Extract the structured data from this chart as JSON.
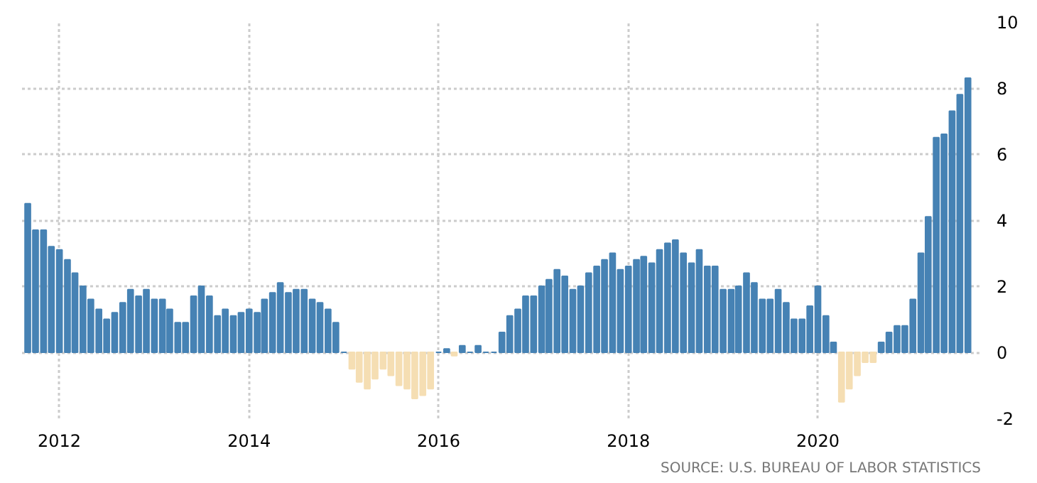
{
  "chart_data": {
    "type": "bar",
    "x": [
      "2011-09",
      "2011-10",
      "2011-11",
      "2011-12",
      "2012-01",
      "2012-02",
      "2012-03",
      "2012-04",
      "2012-05",
      "2012-06",
      "2012-07",
      "2012-08",
      "2012-09",
      "2012-10",
      "2012-11",
      "2012-12",
      "2013-01",
      "2013-02",
      "2013-03",
      "2013-04",
      "2013-05",
      "2013-06",
      "2013-07",
      "2013-08",
      "2013-09",
      "2013-10",
      "2013-11",
      "2013-12",
      "2014-01",
      "2014-02",
      "2014-03",
      "2014-04",
      "2014-05",
      "2014-06",
      "2014-07",
      "2014-08",
      "2014-09",
      "2014-10",
      "2014-11",
      "2014-12",
      "2015-01",
      "2015-02",
      "2015-03",
      "2015-04",
      "2015-05",
      "2015-06",
      "2015-07",
      "2015-08",
      "2015-09",
      "2015-10",
      "2015-11",
      "2015-12",
      "2016-01",
      "2016-02",
      "2016-03",
      "2016-04",
      "2016-05",
      "2016-06",
      "2016-07",
      "2016-08",
      "2016-09",
      "2016-10",
      "2016-11",
      "2016-12",
      "2017-01",
      "2017-02",
      "2017-03",
      "2017-04",
      "2017-05",
      "2017-06",
      "2017-07",
      "2017-08",
      "2017-09",
      "2017-10",
      "2017-11",
      "2017-12",
      "2018-01",
      "2018-02",
      "2018-03",
      "2018-04",
      "2018-05",
      "2018-06",
      "2018-07",
      "2018-08",
      "2018-09",
      "2018-10",
      "2018-11",
      "2018-12",
      "2019-01",
      "2019-02",
      "2019-03",
      "2019-04",
      "2019-05",
      "2019-06",
      "2019-07",
      "2019-08",
      "2019-09",
      "2019-10",
      "2019-11",
      "2019-12",
      "2020-01",
      "2020-02",
      "2020-03",
      "2020-04",
      "2020-05",
      "2020-06",
      "2020-07",
      "2020-08",
      "2020-09",
      "2020-10",
      "2020-11",
      "2020-12",
      "2021-01",
      "2021-02",
      "2021-03",
      "2021-04",
      "2021-05",
      "2021-06",
      "2021-07",
      "2021-08"
    ],
    "values": [
      4.5,
      3.7,
      3.7,
      3.2,
      3.1,
      2.8,
      2.4,
      2.0,
      1.6,
      1.3,
      1.0,
      1.2,
      1.5,
      1.9,
      1.7,
      1.9,
      1.6,
      1.6,
      1.3,
      0.9,
      0.9,
      1.7,
      2.0,
      1.7,
      1.1,
      1.3,
      1.1,
      1.2,
      1.3,
      1.2,
      1.6,
      1.8,
      2.1,
      1.8,
      1.9,
      1.9,
      1.6,
      1.5,
      1.3,
      0.9,
      0,
      -0.5,
      -0.9,
      -1.1,
      -0.8,
      -0.5,
      -0.7,
      -1.0,
      -1.1,
      -1.4,
      -1.3,
      -1.1,
      0,
      0.1,
      -0.1,
      0.2,
      0,
      0.2,
      0,
      0,
      0.6,
      1.1,
      1.3,
      1.7,
      1.7,
      2.0,
      2.2,
      2.5,
      2.3,
      1.9,
      2.0,
      2.4,
      2.6,
      2.8,
      3.0,
      2.5,
      2.6,
      2.8,
      2.9,
      2.7,
      3.1,
      3.3,
      3.4,
      3.0,
      2.7,
      3.1,
      2.6,
      2.6,
      1.9,
      1.9,
      2.0,
      2.4,
      2.1,
      1.6,
      1.6,
      1.9,
      1.5,
      1.0,
      1.0,
      1.4,
      2.0,
      1.1,
      0.3,
      -1.5,
      -1.1,
      -0.7,
      -0.3,
      -0.3,
      0.3,
      0.6,
      0.8,
      0.8,
      1.6,
      3.0,
      4.1,
      6.5,
      6.6,
      7.3,
      7.8,
      8.3
    ],
    "colors": [
      "#4682b4",
      "#4682b4",
      "#4682b4",
      "#4682b4",
      "#4682b4",
      "#4682b4",
      "#4682b4",
      "#4682b4",
      "#4682b4",
      "#4682b4",
      "#4682b4",
      "#4682b4",
      "#4682b4",
      "#4682b4",
      "#4682b4",
      "#4682b4",
      "#4682b4",
      "#4682b4",
      "#4682b4",
      "#4682b4",
      "#4682b4",
      "#4682b4",
      "#4682b4",
      "#4682b4",
      "#4682b4",
      "#4682b4",
      "#4682b4",
      "#4682b4",
      "#4682b4",
      "#4682b4",
      "#4682b4",
      "#4682b4",
      "#4682b4",
      "#4682b4",
      "#4682b4",
      "#4682b4",
      "#4682b4",
      "#4682b4",
      "#4682b4",
      "#4682b4",
      "#4682b4",
      "#f5deb3",
      "#f5deb3",
      "#f5deb3",
      "#f5deb3",
      "#f5deb3",
      "#f5deb3",
      "#f5deb3",
      "#f5deb3",
      "#f5deb3",
      "#f5deb3",
      "#f5deb3",
      "#4682b4",
      "#4682b4",
      "#f5deb3",
      "#4682b4",
      "#4682b4",
      "#4682b4",
      "#4682b4",
      "#4682b4",
      "#4682b4",
      "#4682b4",
      "#4682b4",
      "#4682b4",
      "#4682b4",
      "#4682b4",
      "#4682b4",
      "#4682b4",
      "#4682b4",
      "#4682b4",
      "#4682b4",
      "#4682b4",
      "#4682b4",
      "#4682b4",
      "#4682b4",
      "#4682b4",
      "#4682b4",
      "#4682b4",
      "#4682b4",
      "#4682b4",
      "#4682b4",
      "#4682b4",
      "#4682b4",
      "#4682b4",
      "#4682b4",
      "#4682b4",
      "#4682b4",
      "#4682b4",
      "#4682b4",
      "#4682b4",
      "#4682b4",
      "#4682b4",
      "#4682b4",
      "#4682b4",
      "#4682b4",
      "#4682b4",
      "#4682b4",
      "#4682b4",
      "#4682b4",
      "#4682b4",
      "#4682b4",
      "#4682b4",
      "#4682b4",
      "#f5deb3",
      "#f5deb3",
      "#f5deb3",
      "#f5deb3",
      "#f5deb3",
      "#4682b4",
      "#4682b4",
      "#4682b4",
      "#4682b4",
      "#4682b4",
      "#4682b4",
      "#4682b4",
      "#4682b4",
      "#4682b4",
      "#4682b4",
      "#4682b4",
      "#4682b4"
    ],
    "xlim": [
      "2011-08-10",
      "2021-09-20"
    ],
    "xticks": [
      {
        "value": "2012-01-01",
        "label": "2012"
      },
      {
        "value": "2014-01-01",
        "label": "2014"
      },
      {
        "value": "2016-01-01",
        "label": "2016"
      },
      {
        "value": "2018-01-01",
        "label": "2018"
      },
      {
        "value": "2020-01-01",
        "label": "2020"
      }
    ],
    "ylim": [
      -2,
      10
    ],
    "yticks": [
      -2,
      0,
      2,
      4,
      6,
      8,
      10
    ],
    "grid": true,
    "annotations": [
      "SOURCE: U.S. BUREAU OF LABOR STATISTICS"
    ]
  }
}
